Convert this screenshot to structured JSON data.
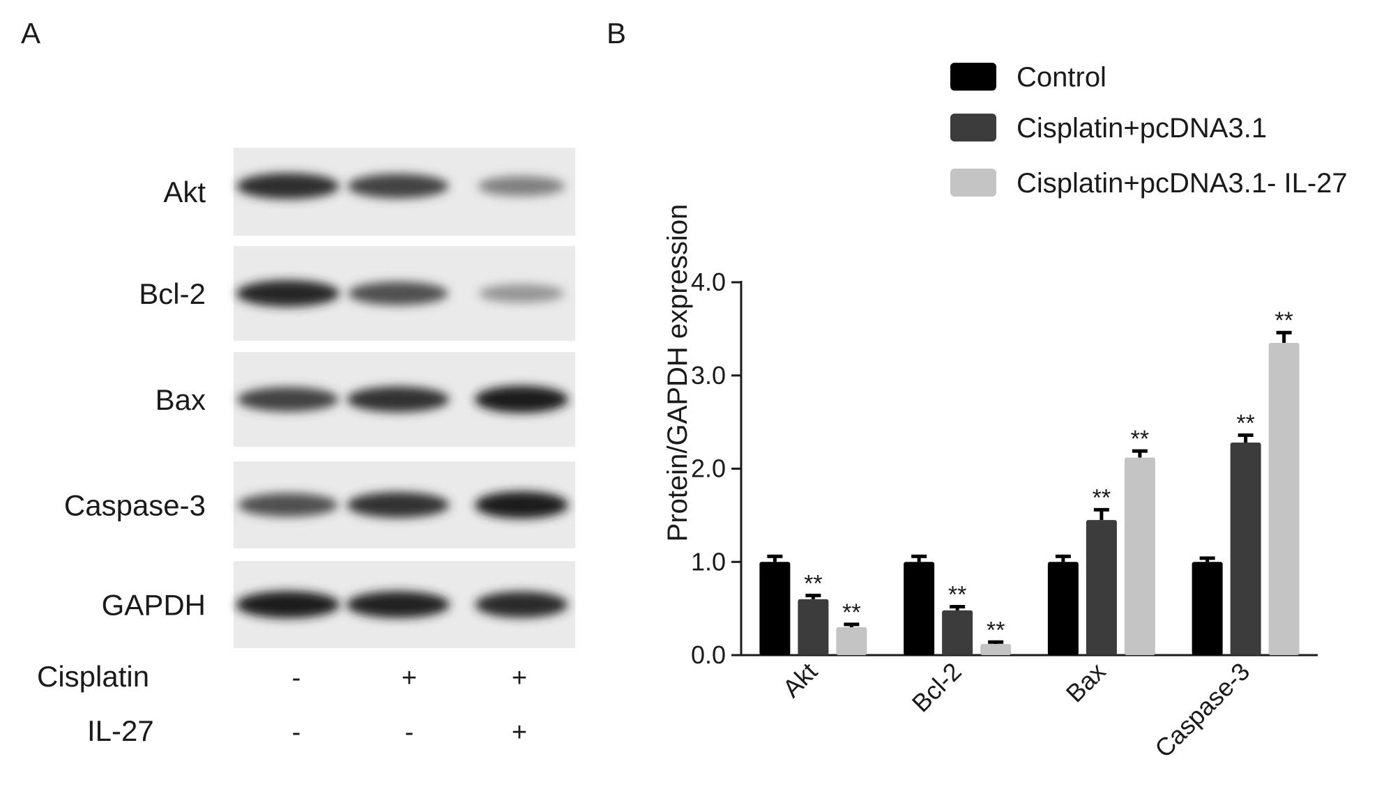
{
  "panel_a": {
    "letter": "A",
    "bands": [
      {
        "protein": "Akt",
        "intensity": [
          0.88,
          0.78,
          0.5
        ]
      },
      {
        "protein": "Bcl-2",
        "intensity": [
          0.92,
          0.72,
          0.4
        ]
      },
      {
        "protein": "Bax",
        "intensity": [
          0.78,
          0.86,
          0.96
        ]
      },
      {
        "protein": "Caspase-3",
        "intensity": [
          0.72,
          0.86,
          0.96
        ]
      },
      {
        "protein": "GAPDH",
        "intensity": [
          0.95,
          0.93,
          0.9
        ]
      }
    ],
    "conditions": [
      {
        "label": "Cisplatin",
        "signs": [
          "-",
          "+",
          "+"
        ]
      },
      {
        "label": "IL-27",
        "signs": [
          "-",
          "-",
          "+"
        ]
      }
    ]
  },
  "panel_b": {
    "letter": "B",
    "chart_data": {
      "type": "bar",
      "categories": [
        "Akt",
        "Bcl-2",
        "Bax",
        "Caspase-3"
      ],
      "series": [
        {
          "name": "Control",
          "color": "#000000",
          "values": [
            1.0,
            1.0,
            1.0,
            1.0
          ],
          "errors": [
            0.06,
            0.06,
            0.06,
            0.04
          ],
          "significance": [
            "",
            "",
            "",
            ""
          ]
        },
        {
          "name": "Cisplatin+pcDNA3.1",
          "color": "#3c3c3c",
          "values": [
            0.6,
            0.48,
            1.45,
            2.28
          ],
          "errors": [
            0.04,
            0.04,
            0.11,
            0.08
          ],
          "significance": [
            "**",
            "**",
            "**",
            "**"
          ]
        },
        {
          "name": "Cisplatin+pcDNA3.1- IL-27",
          "color": "#c4c4c4",
          "values": [
            0.3,
            0.12,
            2.12,
            3.35
          ],
          "errors": [
            0.03,
            0.02,
            0.07,
            0.11
          ],
          "significance": [
            "**",
            "**",
            "**",
            "**"
          ]
        }
      ],
      "ylabel": "Protein/GAPDH expression",
      "xlabel": "",
      "ylim": [
        0,
        4
      ],
      "yticks": [
        "0.0",
        "1.0",
        "2.0",
        "3.0",
        "4.0"
      ],
      "grid": false,
      "legend_position": "top-right"
    }
  }
}
